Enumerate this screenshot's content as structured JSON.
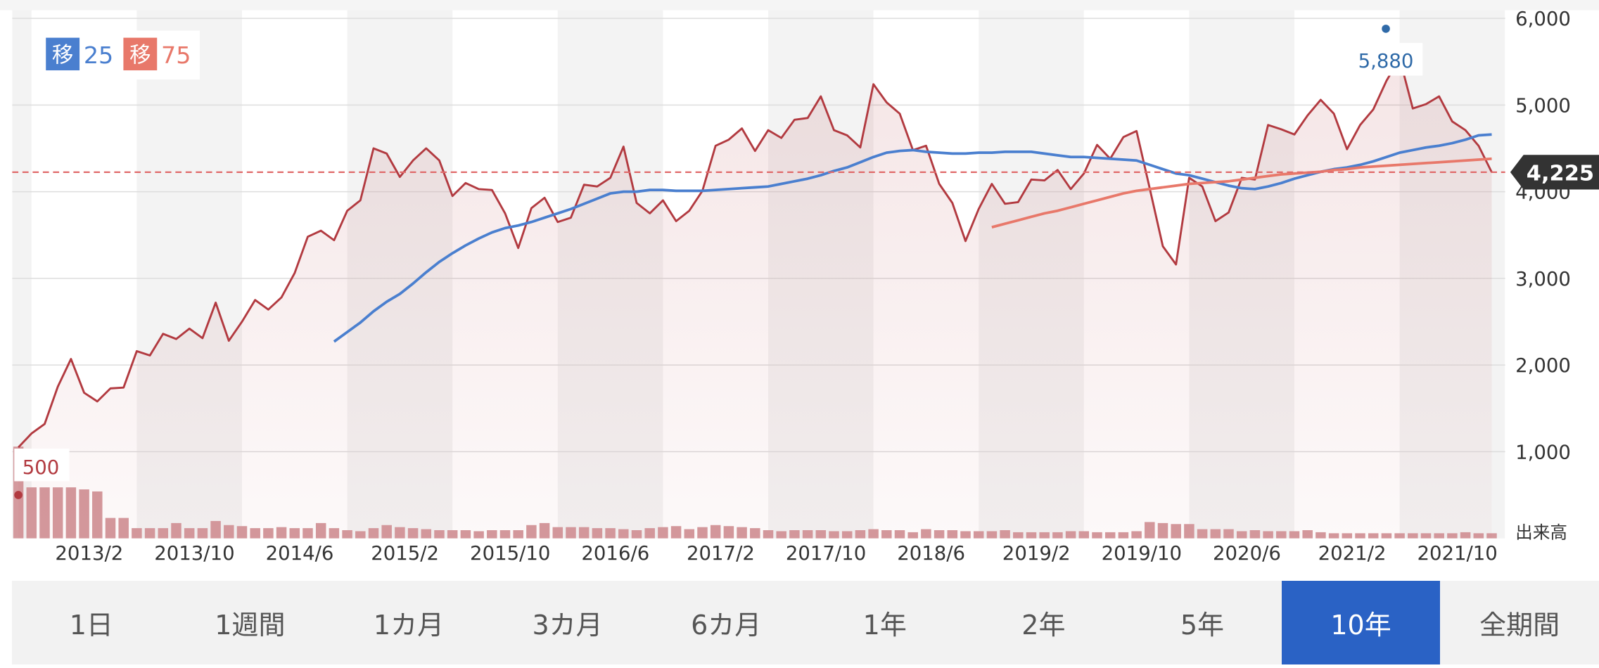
{
  "chart_data": {
    "type": "line",
    "x": [
      null,
      null,
      null,
      null,
      null,
      "2013/2",
      null,
      null,
      null,
      null,
      null,
      null,
      null,
      "2013/10",
      null,
      null,
      null,
      null,
      null,
      null,
      null,
      "2014/6",
      null,
      null,
      null,
      null,
      null,
      null,
      null,
      "2015/2",
      null,
      null,
      null,
      null,
      null,
      null,
      null,
      "2015/10",
      null,
      null,
      null,
      null,
      null,
      null,
      null,
      "2016/6",
      null,
      null,
      null,
      null,
      null,
      null,
      null,
      "2017/2",
      null,
      null,
      null,
      null,
      null,
      null,
      null,
      "2017/10",
      null,
      null,
      null,
      null,
      null,
      null,
      null,
      "2018/6",
      null,
      null,
      null,
      null,
      null,
      null,
      null,
      "2019/2",
      null,
      null,
      null,
      null,
      null,
      null,
      null,
      "2019/10",
      null,
      null,
      null,
      null,
      null,
      null,
      null,
      "2020/6",
      null,
      null,
      null,
      null,
      null,
      null,
      null,
      "2021/2",
      null,
      null,
      null,
      null,
      null,
      null,
      null,
      "2021/10",
      null,
      null,
      null
    ],
    "ylim": [
      0,
      6000
    ],
    "yticks": [
      {
        "value": 1000,
        "label": "1,000"
      },
      {
        "value": 2000,
        "label": "2,000"
      },
      {
        "value": 3000,
        "label": "3,000"
      },
      {
        "value": 4000,
        "label": "4,000"
      },
      {
        "value": 5000,
        "label": "5,000"
      },
      {
        "value": 6000,
        "label": "6,000"
      }
    ],
    "grid": true,
    "price": {
      "color": "#b23a40",
      "values": [
        1050,
        1210,
        1320,
        1750,
        2070,
        1680,
        1580,
        1730,
        1740,
        2160,
        2110,
        2360,
        2300,
        2420,
        2310,
        2720,
        2280,
        2500,
        2750,
        2640,
        2780,
        3060,
        3480,
        3550,
        3440,
        3780,
        3900,
        4500,
        4440,
        4170,
        4360,
        4500,
        4360,
        3950,
        4100,
        4030,
        4020,
        3750,
        3350,
        3810,
        3930,
        3650,
        3700,
        4080,
        4060,
        4160,
        4520,
        3870,
        3750,
        3900,
        3660,
        3780,
        4010,
        4530,
        4600,
        4730,
        4470,
        4710,
        4620,
        4830,
        4850,
        5100,
        4710,
        4650,
        4510,
        5240,
        5030,
        4900,
        4480,
        4530,
        4090,
        3870,
        3430,
        3800,
        4090,
        3860,
        3880,
        4140,
        4130,
        4250,
        4030,
        4210,
        4540,
        4380,
        4630,
        4700,
        4040,
        3370,
        3160,
        4160,
        4060,
        3660,
        3760,
        4160,
        4140,
        4770,
        4720,
        4660,
        4880,
        5060,
        4900,
        4490,
        4770,
        4950,
        5280,
        5540,
        4960,
        5010,
        5100,
        4810,
        4710,
        4530,
        4225
      ]
    },
    "series": [
      {
        "name": "25",
        "color": "#4a7fcf",
        "values": [
          null,
          null,
          null,
          null,
          null,
          null,
          null,
          null,
          null,
          null,
          null,
          null,
          null,
          null,
          null,
          null,
          null,
          null,
          null,
          null,
          null,
          null,
          null,
          null,
          2270,
          2380,
          2490,
          2620,
          2730,
          2820,
          2940,
          3070,
          3190,
          3290,
          3380,
          3460,
          3530,
          3580,
          3610,
          3650,
          3700,
          3750,
          3800,
          3860,
          3920,
          3980,
          4000,
          4000,
          4020,
          4020,
          4010,
          4010,
          4010,
          4020,
          4030,
          4040,
          4050,
          4060,
          4090,
          4120,
          4150,
          4190,
          4240,
          4280,
          4340,
          4400,
          4450,
          4470,
          4480,
          4460,
          4450,
          4440,
          4440,
          4450,
          4450,
          4460,
          4460,
          4460,
          4440,
          4420,
          4400,
          4400,
          4390,
          4380,
          4370,
          4360,
          4310,
          4260,
          4210,
          4190,
          4150,
          4110,
          4070,
          4040,
          4030,
          4060,
          4100,
          4150,
          4190,
          4230,
          4260,
          4280,
          4310,
          4350,
          4400,
          4450,
          4480,
          4510,
          4530,
          4560,
          4600,
          4650,
          4660
        ]
      },
      {
        "name": "75",
        "color": "#e8786a",
        "values": [
          null,
          null,
          null,
          null,
          null,
          null,
          null,
          null,
          null,
          null,
          null,
          null,
          null,
          null,
          null,
          null,
          null,
          null,
          null,
          null,
          null,
          null,
          null,
          null,
          null,
          null,
          null,
          null,
          null,
          null,
          null,
          null,
          null,
          null,
          null,
          null,
          null,
          null,
          null,
          null,
          null,
          null,
          null,
          null,
          null,
          null,
          null,
          null,
          null,
          null,
          null,
          null,
          null,
          null,
          null,
          null,
          null,
          null,
          null,
          null,
          null,
          null,
          null,
          null,
          null,
          null,
          null,
          null,
          null,
          null,
          null,
          null,
          null,
          null,
          3590,
          3630,
          3670,
          3710,
          3750,
          3780,
          3820,
          3860,
          3900,
          3940,
          3980,
          4010,
          4030,
          4050,
          4070,
          4090,
          4100,
          4110,
          4120,
          4140,
          4160,
          4180,
          4200,
          4210,
          4220,
          4230,
          4250,
          4260,
          4280,
          4290,
          4300,
          4310,
          4320,
          4330,
          4340,
          4350,
          4360,
          4370,
          4380
        ]
      }
    ],
    "legend_badge": "移",
    "volume": {
      "label": "出来高",
      "color": "#d49a9e",
      "values": [
        9.0,
        5.0,
        5.0,
        5.0,
        5.0,
        4.8,
        4.6,
        2.0,
        2.0,
        1.0,
        1.0,
        1.0,
        1.5,
        1.0,
        1.0,
        1.7,
        1.3,
        1.2,
        1.0,
        1.0,
        1.1,
        1.0,
        1.0,
        1.5,
        1.0,
        0.8,
        0.7,
        1.0,
        1.3,
        1.1,
        1.0,
        0.9,
        0.8,
        0.8,
        0.8,
        0.7,
        0.8,
        0.8,
        0.8,
        1.3,
        1.5,
        1.1,
        1.1,
        1.1,
        1.0,
        1.0,
        0.9,
        0.8,
        1.0,
        1.1,
        1.2,
        0.9,
        1.1,
        1.3,
        1.2,
        1.1,
        1.0,
        0.8,
        0.7,
        0.8,
        0.8,
        0.8,
        0.7,
        0.7,
        0.8,
        0.9,
        0.8,
        0.8,
        0.6,
        0.9,
        0.8,
        0.8,
        0.7,
        0.7,
        0.7,
        0.8,
        0.6,
        0.6,
        0.6,
        0.6,
        0.7,
        0.7,
        0.6,
        0.6,
        0.6,
        0.7,
        1.6,
        1.5,
        1.4,
        1.4,
        0.9,
        0.9,
        0.9,
        0.7,
        0.8,
        0.7,
        0.7,
        0.7,
        0.8,
        0.6,
        0.5,
        0.5,
        0.5,
        0.5,
        0.5,
        0.5,
        0.5,
        0.5,
        0.5,
        0.5,
        0.6,
        0.5,
        0.5
      ]
    },
    "high": {
      "value": 5880,
      "label": "5,880"
    },
    "low": 500,
    "current": {
      "value": 4225,
      "label": "4,225"
    }
  },
  "periods": {
    "options": [
      "1日",
      "1週間",
      "1カ月",
      "3カ月",
      "6カ月",
      "1年",
      "2年",
      "5年",
      "10年",
      "全期間"
    ],
    "selected_index": 8
  }
}
